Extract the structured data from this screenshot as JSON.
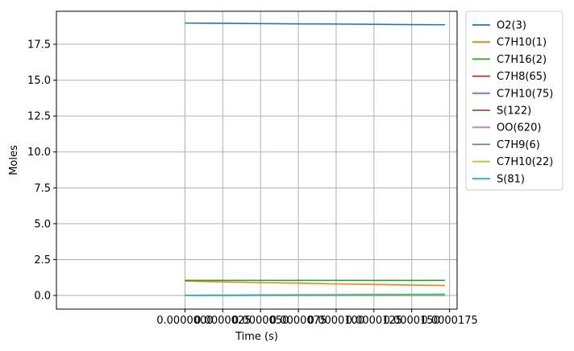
{
  "chart_data": {
    "type": "line",
    "title": "",
    "xlabel": "Time  (s)",
    "ylabel": "Moles",
    "xlim": [
      -8.5e-06,
      1.8e-05
    ],
    "ylim": [
      -0.95,
      19.8
    ],
    "x_ticks": [
      0,
      2.5e-06,
      5e-06,
      7.5e-06,
      1e-05,
      1.25e-05,
      1.5e-05,
      1.75e-05
    ],
    "x_tick_labels": [
      "0.0000000",
      "0.0000025",
      "0.0000050",
      "0.0000075",
      "0.0000100",
      "0.0000125",
      "0.0000150",
      "0.0000175"
    ],
    "y_ticks": [
      0,
      2.5,
      5,
      7.5,
      10,
      12.5,
      15,
      17.5
    ],
    "y_tick_labels": [
      "0.0",
      "2.5",
      "5.0",
      "7.5",
      "10.0",
      "12.5",
      "15.0",
      "17.5"
    ],
    "grid": true,
    "legend_position": "outside-right",
    "x": [
      0,
      2.5e-06,
      5e-06,
      7.5e-06,
      1e-05,
      1.25e-05,
      1.5e-05,
      1.72e-05
    ],
    "series": [
      {
        "name": "O2(3)",
        "color": "#1f77b4",
        "values": [
          18.98,
          18.96,
          18.94,
          18.92,
          18.91,
          18.89,
          18.87,
          18.86
        ]
      },
      {
        "name": "C7H10(1)",
        "color": "#ff7f0e",
        "values": [
          1.0,
          0.95,
          0.9,
          0.86,
          0.81,
          0.77,
          0.73,
          0.7
        ]
      },
      {
        "name": "C7H16(2)",
        "color": "#2ca02c",
        "values": [
          1.05,
          1.05,
          1.05,
          1.05,
          1.05,
          1.05,
          1.05,
          1.05
        ]
      },
      {
        "name": "C7H8(65)",
        "color": "#d62728",
        "values": [
          0,
          0.01,
          0.02,
          0.03,
          0.04,
          0.05,
          0.06,
          0.07
        ]
      },
      {
        "name": "C7H10(75)",
        "color": "#9467bd",
        "values": [
          0,
          0.003,
          0.006,
          0.009,
          0.012,
          0.015,
          0.018,
          0.02
        ]
      },
      {
        "name": "S(122)",
        "color": "#8c564b",
        "values": [
          0,
          0.005,
          0.01,
          0.015,
          0.02,
          0.025,
          0.03,
          0.035
        ]
      },
      {
        "name": "OO(620)",
        "color": "#e377c2",
        "values": [
          0,
          0.002,
          0.004,
          0.006,
          0.008,
          0.01,
          0.012,
          0.014
        ]
      },
      {
        "name": "C7H9(6)",
        "color": "#7f7f7f",
        "values": [
          0,
          0.001,
          0.002,
          0.003,
          0.004,
          0.005,
          0.006,
          0.007
        ]
      },
      {
        "name": "C7H10(22)",
        "color": "#bcbd22",
        "values": [
          0,
          0.004,
          0.008,
          0.012,
          0.016,
          0.02,
          0.024,
          0.028
        ]
      },
      {
        "name": "S(81)",
        "color": "#17becf",
        "values": [
          0.02,
          0.03,
          0.04,
          0.05,
          0.06,
          0.07,
          0.08,
          0.09
        ]
      }
    ]
  }
}
